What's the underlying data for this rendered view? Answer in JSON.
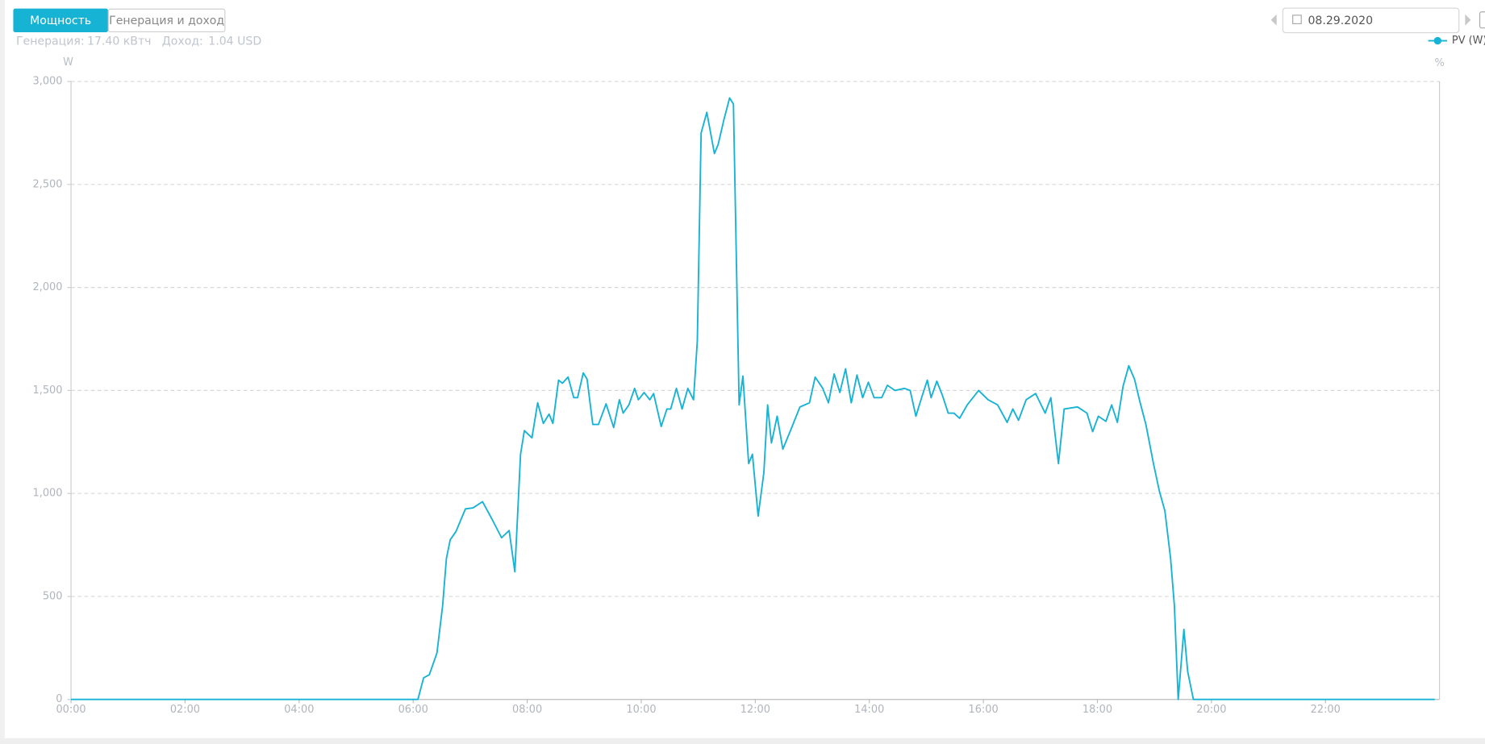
{
  "header": {
    "tabs": [
      "Мощность",
      "Генерация и доход"
    ],
    "summary": [
      {
        "label": "Генерация:",
        "value": "17.40 кВтч"
      },
      {
        "label": "Доход:",
        "value": "1.04 USD"
      }
    ],
    "date": "08.29.2020"
  },
  "chart_data": {
    "type": "line",
    "y_unit": "W",
    "y2_unit": "%",
    "grid": true,
    "legend": "top-right",
    "x": [
      "00:00",
      "06:05",
      "06:11",
      "06:17",
      "06:25",
      "06:31",
      "06:35",
      "06:39",
      "06:45",
      "06:55",
      "07:03",
      "07:13",
      "07:23",
      "07:33",
      "07:41",
      "07:47",
      "07:53",
      "07:57",
      "08:05",
      "08:11",
      "08:17",
      "08:23",
      "08:27",
      "08:33",
      "08:37",
      "08:43",
      "08:49",
      "08:53",
      "08:59",
      "09:03",
      "09:09",
      "09:15",
      "09:23",
      "09:31",
      "09:37",
      "09:41",
      "09:47",
      "09:53",
      "09:57",
      "10:03",
      "10:09",
      "10:13",
      "10:21",
      "10:27",
      "10:31",
      "10:37",
      "10:43",
      "10:49",
      "10:55",
      "10:59",
      "11:03",
      "11:09",
      "11:17",
      "11:21",
      "11:27",
      "11:33",
      "11:37",
      "11:43",
      "11:47",
      "11:53",
      "11:57",
      "12:03",
      "12:09",
      "12:13",
      "12:17",
      "12:23",
      "12:29",
      "12:37",
      "12:47",
      "12:57",
      "13:03",
      "13:11",
      "13:17",
      "13:23",
      "13:29",
      "13:35",
      "13:41",
      "13:47",
      "13:53",
      "13:59",
      "14:05",
      "14:13",
      "14:19",
      "14:27",
      "14:37",
      "14:43",
      "14:49",
      "14:55",
      "15:01",
      "15:05",
      "15:11",
      "15:17",
      "15:23",
      "15:29",
      "15:35",
      "15:43",
      "15:55",
      "16:05",
      "16:15",
      "16:25",
      "16:31",
      "16:37",
      "16:45",
      "16:55",
      "17:05",
      "17:11",
      "17:19",
      "17:25",
      "17:39",
      "17:49",
      "17:55",
      "18:01",
      "18:09",
      "18:15",
      "18:21",
      "18:27",
      "18:33",
      "18:39",
      "18:45",
      "18:51",
      "18:59",
      "19:05",
      "19:11",
      "19:17",
      "19:21",
      "19:25",
      "19:31",
      "19:35",
      "19:41",
      "23:55"
    ],
    "series": [
      {
        "name": "PV (W)",
        "color": "#17b3d4",
        "values": [
          0,
          0,
          105,
          120,
          225,
          455,
          685,
          775,
          815,
          925,
          930,
          960,
          875,
          785,
          820,
          620,
          1190,
          1305,
          1270,
          1440,
          1340,
          1385,
          1340,
          1550,
          1535,
          1565,
          1465,
          1465,
          1585,
          1555,
          1335,
          1335,
          1435,
          1320,
          1455,
          1390,
          1430,
          1510,
          1455,
          1490,
          1455,
          1485,
          1325,
          1410,
          1410,
          1510,
          1410,
          1510,
          1455,
          1740,
          2750,
          2850,
          2650,
          2695,
          2815,
          2920,
          2890,
          1430,
          1570,
          1145,
          1190,
          890,
          1100,
          1430,
          1245,
          1375,
          1215,
          1305,
          1420,
          1440,
          1565,
          1510,
          1440,
          1580,
          1490,
          1605,
          1440,
          1575,
          1465,
          1540,
          1465,
          1465,
          1525,
          1500,
          1510,
          1500,
          1375,
          1465,
          1550,
          1465,
          1545,
          1475,
          1390,
          1390,
          1365,
          1430,
          1500,
          1455,
          1430,
          1345,
          1410,
          1355,
          1455,
          1485,
          1390,
          1465,
          1145,
          1410,
          1420,
          1390,
          1300,
          1375,
          1350,
          1430,
          1345,
          1520,
          1620,
          1555,
          1440,
          1335,
          1145,
          1015,
          915,
          685,
          455,
          0,
          340,
          135,
          0,
          0
        ]
      }
    ],
    "xlim": [
      "00:00",
      "24:00"
    ],
    "xticks": [
      "00:00",
      "02:00",
      "04:00",
      "06:00",
      "08:00",
      "10:00",
      "12:00",
      "14:00",
      "16:00",
      "18:00",
      "20:00",
      "22:00"
    ],
    "ylim": [
      0,
      3000
    ],
    "yticks": [
      0,
      500,
      {
        "value": 1000,
        "label": "1,000"
      },
      {
        "value": 1500,
        "label": "1,500"
      },
      {
        "value": 2000,
        "label": "2,000"
      },
      {
        "value": 2500,
        "label": "2,500"
      },
      {
        "value": 3000,
        "label": "3,000"
      }
    ]
  }
}
